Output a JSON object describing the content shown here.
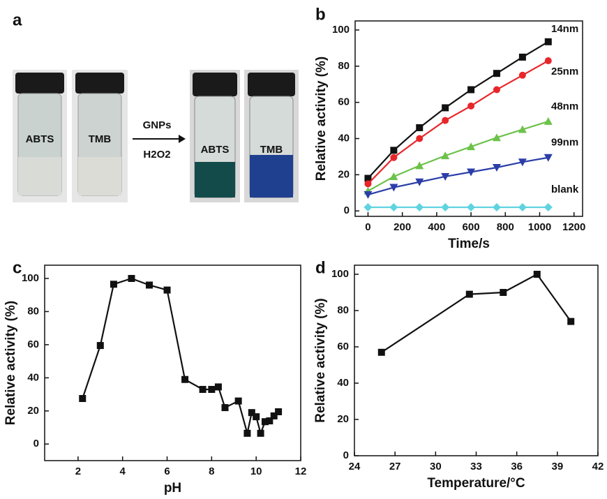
{
  "photo": {
    "panel": "a",
    "vial_labels": [
      "ABTS",
      "TMB",
      "ABTS",
      "TMB"
    ],
    "arrow_top": "GNPs",
    "arrow_bottom": "H2O2"
  },
  "chart_data": [
    {
      "type": "line",
      "panel": "b",
      "xlabel": "Time/s",
      "ylabel": "Relative activity (%)",
      "x": [
        0,
        150,
        300,
        450,
        600,
        750,
        900,
        1050
      ],
      "series": [
        {
          "name": "14nm",
          "color": "#111111",
          "marker": "square",
          "values": [
            18,
            33.5,
            46,
            57,
            67,
            76,
            85,
            93.5
          ]
        },
        {
          "name": "25nm",
          "color": "#e8262a",
          "marker": "circle",
          "values": [
            15,
            29.5,
            40,
            50,
            58,
            67,
            75,
            83
          ]
        },
        {
          "name": "48nm",
          "color": "#6cc24a",
          "marker": "triangle",
          "values": [
            11,
            19,
            25,
            30.5,
            35.5,
            40.5,
            45,
            49.5
          ]
        },
        {
          "name": "99nm",
          "color": "#2b3ea8",
          "marker": "triangle-down",
          "values": [
            9,
            13,
            16,
            19,
            21.5,
            24,
            27,
            29.5
          ]
        },
        {
          "name": "blank",
          "color": "#5fd3e0",
          "marker": "diamond",
          "values": [
            2,
            2,
            2,
            2,
            2,
            2,
            2,
            2
          ]
        }
      ],
      "xlim": [
        -75,
        1250
      ],
      "xticks": [
        0,
        200,
        400,
        600,
        800,
        1000,
        1200
      ],
      "ylim": [
        -3,
        105
      ],
      "yticks": [
        0,
        20,
        40,
        60,
        80,
        100
      ]
    },
    {
      "type": "line",
      "panel": "c",
      "xlabel": "pH",
      "ylabel": "Relative activity (%)",
      "color": "#111111",
      "marker": "square",
      "x": [
        2.2,
        3.0,
        3.6,
        4.4,
        5.2,
        6.0,
        6.8,
        7.6,
        8.0,
        8.3,
        8.6,
        9.2,
        9.6,
        9.8,
        10.0,
        10.2,
        10.4,
        10.6,
        10.8,
        11.0
      ],
      "values": [
        27.5,
        59.5,
        96.5,
        100,
        96,
        93,
        39,
        33,
        33,
        34.5,
        22,
        26,
        6.5,
        19,
        16.5,
        6.5,
        13.5,
        14,
        17,
        19.5
      ],
      "xlim": [
        0.5,
        12
      ],
      "xticks": [
        2,
        4,
        6,
        8,
        10,
        12
      ],
      "ylim": [
        -10,
        108
      ],
      "yticks": [
        0,
        20,
        40,
        60,
        80,
        100
      ]
    },
    {
      "type": "line",
      "panel": "d",
      "xlabel": "Temperature/°C",
      "ylabel": "Relative  activity (%)",
      "color": "#111111",
      "marker": "square",
      "x": [
        26,
        32.5,
        35,
        37.5,
        40
      ],
      "values": [
        57,
        89,
        90,
        100,
        74
      ],
      "xlim": [
        24,
        42
      ],
      "xticks": [
        24,
        27,
        30,
        33,
        36,
        39,
        42
      ],
      "ylim": [
        0,
        105
      ],
      "yticks": [
        0,
        20,
        40,
        60,
        80,
        100
      ]
    }
  ]
}
